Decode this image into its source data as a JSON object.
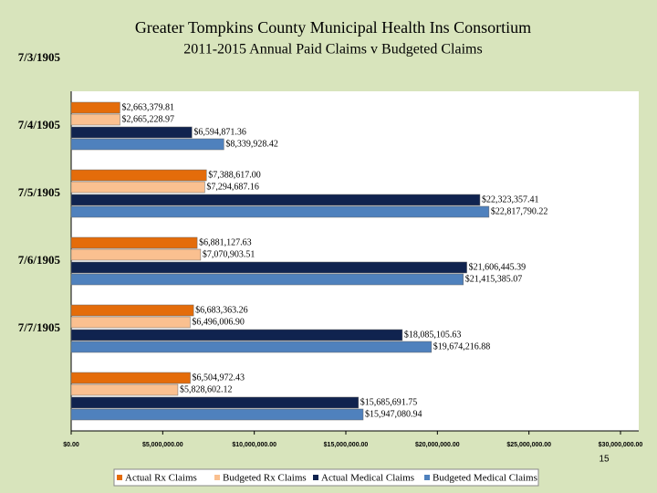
{
  "chart_data": {
    "type": "hbar",
    "title": "Greater Tompkins County Municipal Health Ins Consortium",
    "subtitle": "2011-2015 Annual Paid Claims v Budgeted Claims",
    "categories": [
      "7/3/1905",
      "7/4/1905",
      "7/5/1905",
      "7/6/1905",
      "7/7/1905",
      null
    ],
    "series": [
      {
        "name": "Actual Rx Claims",
        "color": "#e46c0a",
        "values": [
          null,
          2663379.81,
          7388617.0,
          6881127.63,
          6683363.26,
          6504972.43
        ],
        "value_labels": [
          null,
          "$2,663,379.81",
          "$7,388,617.00",
          "$6,881,127.63",
          "$6,683,363.26",
          "$6,504,972.43"
        ]
      },
      {
        "name": "Budgeted Rx Claims",
        "color": "#fac090",
        "values": [
          null,
          2665228.97,
          7294687.16,
          7070903.51,
          6496006.9,
          5828602.12
        ],
        "value_labels": [
          null,
          "$2,665,228.97",
          "$7,294,687.16",
          "$7,070,903.51",
          "$6,496,006.90",
          "$5,828,602.12"
        ]
      },
      {
        "name": "Actual Medical Claims",
        "color": "#10234f",
        "values": [
          null,
          6594871.36,
          22323357.41,
          21606445.39,
          18085105.63,
          15685691.75
        ],
        "value_labels": [
          null,
          "$6,594,871.36",
          "$22,323,357.41",
          "$21,606,445.39",
          "$18,085,105.63",
          "$15,685,691.75"
        ]
      },
      {
        "name": "Budgeted Medical Claims",
        "color": "#4f81bd",
        "values": [
          null,
          8339928.42,
          22817790.22,
          21415385.07,
          19674216.88,
          15947080.94
        ],
        "value_labels": [
          null,
          "$8,339,928.42",
          "$22,817,790.22",
          "$21,415,385.07",
          "$19,674,216.88",
          "$15,947,080.94"
        ]
      }
    ],
    "xlim": [
      0,
      30000000
    ],
    "xticks": [
      {
        "value": 0,
        "label": "$0.00"
      },
      {
        "value": 5000000,
        "label": "$5,000,000.00"
      },
      {
        "value": 10000000,
        "label": "$10,000,000.00"
      },
      {
        "value": 15000000,
        "label": "$15,000,000.00"
      },
      {
        "value": 20000000,
        "label": "$20,000,000.00"
      },
      {
        "value": 25000000,
        "label": "$25,000,000.00"
      },
      {
        "value": 30000000,
        "label": "$30,000,000.00"
      }
    ],
    "legend": "bottom"
  },
  "page_number": 15
}
